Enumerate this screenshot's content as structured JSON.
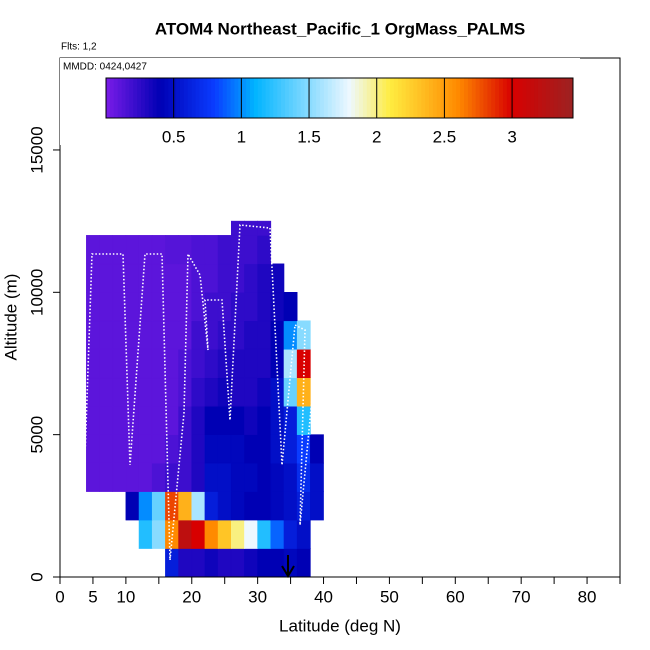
{
  "chart_data": {
    "type": "heatmap",
    "title": "ATOM4 Northeast_Pacific_1 OrgMass_PALMS",
    "subtitle": "Flts: 1,2",
    "annotation": "MMDD: 0424,0427",
    "x_label": "Latitude (deg N)",
    "y_label": "Altitude (m)",
    "xlim": [
      0,
      85
    ],
    "ylim": [
      0,
      18230
    ],
    "xticks": [
      0,
      5,
      10,
      20,
      30,
      40,
      50,
      60,
      70,
      80
    ],
    "xminor": [
      15,
      25,
      35,
      45,
      55,
      65,
      75,
      85
    ],
    "yticks": [
      0,
      5000,
      10000,
      15000
    ],
    "clim": [
      0,
      3.45
    ],
    "cticks": [
      0.5,
      1.0,
      1.5,
      2.0,
      2.5,
      3.0
    ],
    "colorscale": [
      [
        0,
        "#7a1ce8"
      ],
      [
        0.4,
        "#0000b4"
      ],
      [
        0.8,
        "#0a3cff"
      ],
      [
        1.1,
        "#00b4ff"
      ],
      [
        1.8,
        "#eef8ff"
      ],
      [
        2.1,
        "#ffec40"
      ],
      [
        2.6,
        "#ff8a00"
      ],
      [
        3.0,
        "#d80000"
      ],
      [
        3.45,
        "#9c2222"
      ]
    ],
    "x_bins": [
      4,
      6,
      8,
      10,
      12,
      14,
      16,
      18,
      20,
      22,
      24,
      26,
      28,
      30,
      32,
      34,
      36,
      38,
      40
    ],
    "y_bins": [
      0,
      1000,
      2000,
      3000,
      4000,
      5000,
      6000,
      7000,
      8000,
      9000,
      10000,
      11000,
      12000,
      12500
    ],
    "z": [
      [
        null,
        null,
        null,
        null,
        null,
        null,
        0.6,
        0.3,
        0.3,
        0.35,
        0.3,
        0.3,
        0.35,
        0.4,
        0.4,
        0.45,
        0.4,
        null
      ],
      [
        null,
        null,
        null,
        null,
        1.2,
        1.5,
        2.6,
        3.2,
        3.0,
        2.6,
        2.3,
        2.0,
        1.8,
        1.2,
        0.9,
        0.6,
        0.5,
        null
      ],
      [
        null,
        null,
        null,
        0.4,
        1.0,
        1.4,
        2.8,
        2.4,
        1.6,
        0.6,
        0.5,
        0.45,
        0.4,
        0.4,
        0.45,
        0.5,
        0.6,
        0.5
      ],
      [
        0.1,
        0.1,
        0.1,
        0.1,
        0.1,
        0.15,
        0.2,
        0.2,
        0.3,
        0.5,
        0.5,
        0.45,
        0.45,
        0.4,
        0.45,
        0.5,
        0.7,
        0.5
      ],
      [
        0.1,
        0.1,
        0.1,
        0.1,
        0.1,
        0.1,
        0.15,
        0.2,
        0.3,
        0.45,
        0.45,
        0.45,
        0.4,
        0.4,
        0.5,
        0.6,
        0.8,
        0.4
      ],
      [
        0.1,
        0.1,
        0.1,
        0.1,
        0.1,
        0.1,
        0.1,
        0.2,
        0.3,
        0.4,
        0.4,
        0.4,
        0.35,
        0.4,
        0.5,
        0.6,
        1.2,
        null
      ],
      [
        0.1,
        0.1,
        0.1,
        0.1,
        0.1,
        0.1,
        0.1,
        0.15,
        0.25,
        0.3,
        0.35,
        0.3,
        0.3,
        0.35,
        0.5,
        1.4,
        2.4,
        null
      ],
      [
        0.1,
        0.1,
        0.1,
        0.1,
        0.1,
        0.1,
        0.1,
        0.15,
        0.2,
        0.25,
        0.3,
        0.3,
        0.3,
        0.3,
        0.4,
        1.6,
        3.0,
        null
      ],
      [
        0.1,
        0.1,
        0.1,
        0.1,
        0.1,
        0.1,
        0.1,
        0.1,
        0.2,
        0.2,
        0.25,
        0.25,
        0.3,
        0.3,
        0.4,
        1.0,
        1.5,
        null
      ],
      [
        0.1,
        0.1,
        0.1,
        0.1,
        0.1,
        0.1,
        0.1,
        0.1,
        0.15,
        0.2,
        0.2,
        0.25,
        0.25,
        0.3,
        0.35,
        0.4,
        null,
        null
      ],
      [
        0.1,
        0.1,
        0.1,
        0.1,
        0.1,
        0.1,
        0.1,
        0.1,
        0.15,
        0.15,
        0.2,
        0.2,
        0.25,
        0.3,
        0.35,
        null,
        null,
        null
      ],
      [
        0.1,
        0.1,
        0.1,
        0.1,
        0.1,
        0.1,
        0.12,
        0.12,
        0.15,
        0.15,
        0.2,
        0.2,
        0.2,
        0.25,
        null,
        null,
        null,
        null
      ],
      [
        null,
        null,
        null,
        null,
        null,
        null,
        null,
        null,
        null,
        null,
        null,
        0.2,
        0.2,
        0.2,
        null,
        null,
        null,
        null
      ]
    ]
  }
}
